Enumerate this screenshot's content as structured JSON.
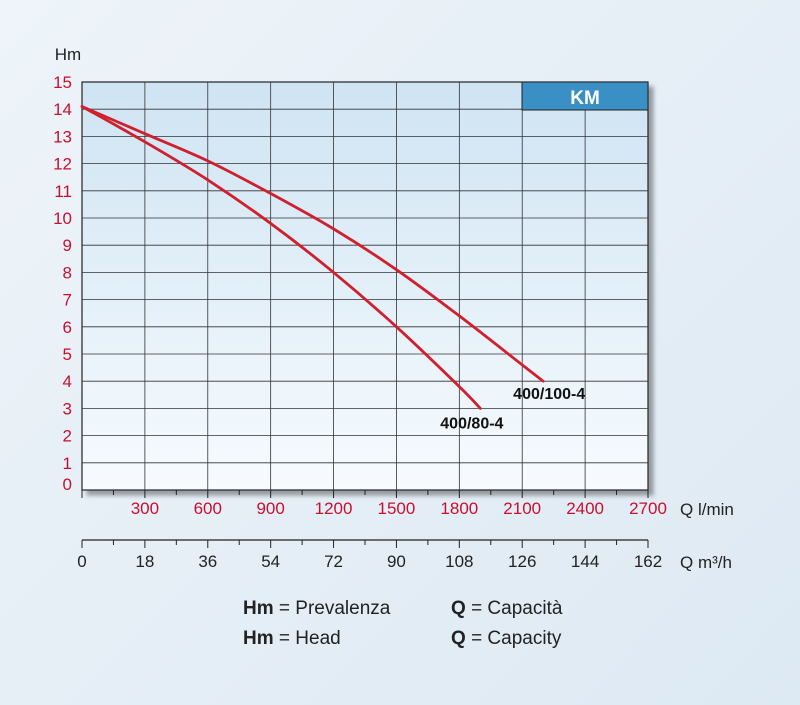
{
  "chart_data": {
    "type": "line",
    "title": "",
    "badge": "KM",
    "ylabel": "Hm",
    "xlabel": "Q l/min",
    "xlabel2": "Q m³/h",
    "ylim": [
      0,
      15
    ],
    "xlim": [
      0,
      2700
    ],
    "y_ticks": [
      "0",
      "1",
      "2",
      "3",
      "4",
      "5",
      "6",
      "7",
      "8",
      "9",
      "10",
      "11",
      "12",
      "13",
      "14",
      "15"
    ],
    "x_ticks": [
      "300",
      "600",
      "900",
      "1200",
      "1500",
      "1800",
      "2100",
      "2400",
      "2700"
    ],
    "x2_ticks": [
      "0",
      "18",
      "36",
      "54",
      "72",
      "90",
      "108",
      "126",
      "144",
      "162"
    ],
    "grid": true,
    "series": [
      {
        "name": "400/100-4",
        "x": [
          0,
          300,
          600,
          900,
          1200,
          1500,
          1800,
          2100,
          2200
        ],
        "y": [
          14.1,
          13.1,
          12.1,
          10.9,
          9.6,
          8.1,
          6.4,
          4.6,
          4.0
        ]
      },
      {
        "name": "400/80-4",
        "x": [
          0,
          300,
          600,
          900,
          1200,
          1500,
          1800,
          1900
        ],
        "y": [
          14.1,
          12.8,
          11.4,
          9.8,
          8.0,
          6.0,
          3.8,
          3.0
        ]
      }
    ],
    "colors": {
      "line": "#d0202e",
      "tick_red": "#c8102e",
      "badge": "#3a8fc4"
    }
  },
  "legend": {
    "row1": {
      "k1": "Hm",
      "v1": "= Prevalenza",
      "k2": "Q",
      "v2": "= Capacità"
    },
    "row2": {
      "k1": "Hm",
      "v1": "= Head",
      "k2": "Q",
      "v2": "= Capacity"
    }
  }
}
